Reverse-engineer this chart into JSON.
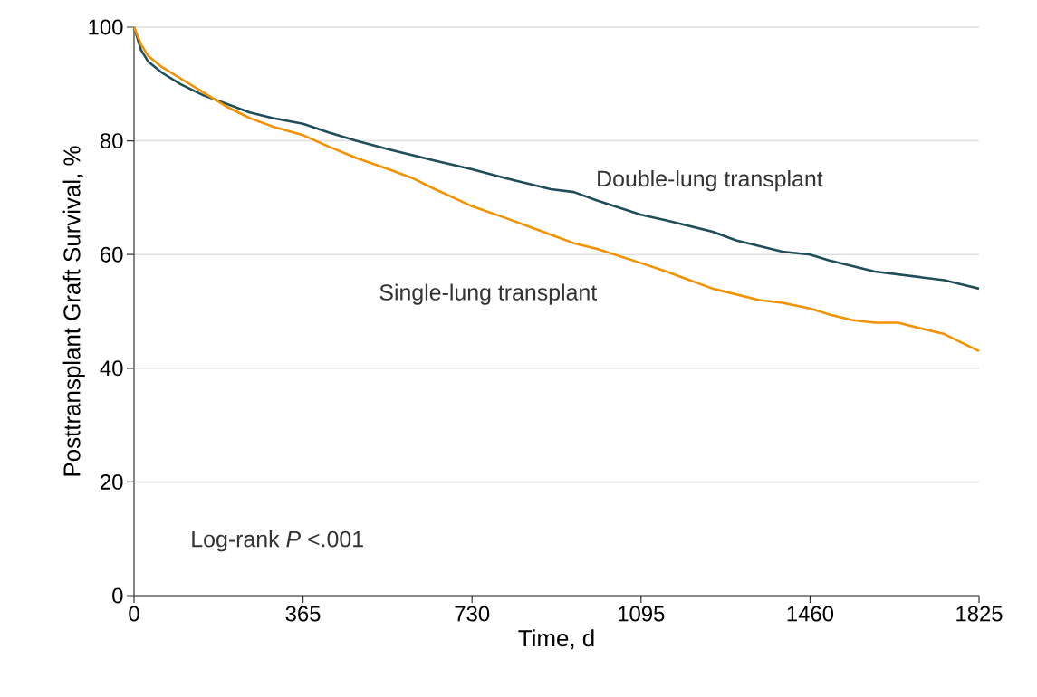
{
  "chart_data": {
    "type": "line",
    "xlabel": "Time, d",
    "ylabel": "Posttransplant Graft Survival, %",
    "x": [
      0,
      15,
      30,
      60,
      100,
      150,
      200,
      250,
      300,
      365,
      420,
      480,
      550,
      600,
      650,
      730,
      800,
      850,
      900,
      950,
      1000,
      1095,
      1150,
      1200,
      1250,
      1300,
      1350,
      1400,
      1460,
      1500,
      1550,
      1600,
      1650,
      1700,
      1750,
      1800,
      1825
    ],
    "series": [
      {
        "name": "Double-lung transplant",
        "color": "#1f4e5a",
        "values": [
          100,
          96,
          94,
          92,
          90,
          88,
          86.5,
          85,
          84,
          83,
          81.5,
          80,
          78.5,
          77.5,
          76.5,
          75,
          73.5,
          72.5,
          71.5,
          71,
          69.5,
          67,
          66,
          65,
          64,
          62.5,
          61.5,
          60.5,
          60,
          59,
          58,
          57,
          56.5,
          56,
          55.5,
          54.5,
          54
        ]
      },
      {
        "name": "Single-lung transplant",
        "color": "#f39200",
        "values": [
          100,
          97,
          95,
          93,
          91,
          88.5,
          86,
          84,
          82.5,
          81,
          79,
          77,
          75,
          73.5,
          71.5,
          68.5,
          66.5,
          65,
          63.5,
          62,
          61,
          58.5,
          57,
          55.5,
          54,
          53,
          52,
          51.5,
          50.5,
          49.5,
          48.5,
          48,
          48,
          47,
          46,
          44,
          43
        ]
      }
    ],
    "xlim": [
      0,
      1825
    ],
    "xticks": [
      0,
      365,
      730,
      1095,
      1460,
      1825
    ],
    "ylim": [
      0,
      100
    ],
    "yticks": [
      0,
      20,
      40,
      60,
      80,
      100
    ],
    "grid": "y",
    "annotations": [
      "Log-rank *P* <.001"
    ]
  }
}
